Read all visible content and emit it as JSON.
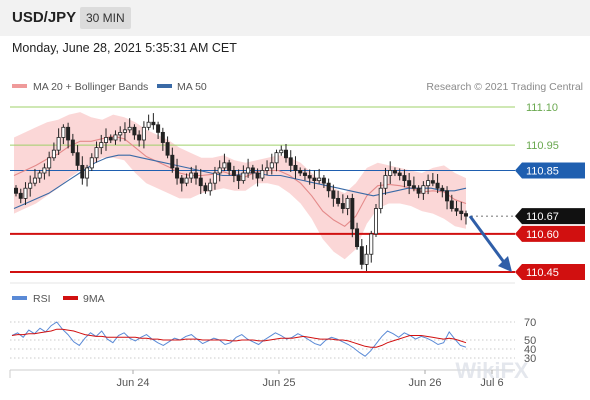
{
  "header": {
    "pair": "USD/JPY",
    "timeframe": "30 MIN",
    "datetime": "Monday, June 28, 2021 5:35:31 AM CET"
  },
  "legend": {
    "bollinger": "MA 20 + Bollinger Bands",
    "ma50": "MA 50",
    "credit": "Research © 2021 Trading Central"
  },
  "rsi_legend": {
    "rsi": "RSI",
    "ma9": "9MA"
  },
  "watermark": "WikiFX",
  "colors": {
    "bollinger_band": "#f9c9c9",
    "ma20": "#e48a8a",
    "ma50": "#3a6aa6",
    "support": "#d11010",
    "resistance_green": "#9fd06a",
    "current_blue": "#1f5fb0",
    "arrow": "#2f5ea8",
    "candle": "#222222",
    "rsi": "#5a8ad6",
    "rsi_ma": "#d11010"
  },
  "chart_data": [
    {
      "type": "candlestick",
      "title": "USD/JPY 30 MIN",
      "x_ticks": [
        "Jun 24",
        "Jun 25",
        "Jun 26",
        "Jul 6"
      ],
      "ylim": [
        110.44,
        111.14
      ],
      "levels": [
        {
          "value": 111.1,
          "label": "111.10",
          "kind": "resistance"
        },
        {
          "value": 110.95,
          "label": "110.95",
          "kind": "resistance"
        },
        {
          "value": 110.85,
          "label": "110.85",
          "kind": "pivot"
        },
        {
          "value": 110.67,
          "label": "110.67",
          "kind": "current"
        },
        {
          "value": 110.6,
          "label": "110.60",
          "kind": "support"
        },
        {
          "value": 110.45,
          "label": "110.45",
          "kind": "support"
        }
      ],
      "close_series": [
        110.76,
        110.74,
        110.78,
        110.8,
        110.82,
        110.84,
        110.86,
        110.9,
        110.93,
        110.98,
        111.02,
        110.97,
        110.92,
        110.87,
        110.82,
        110.86,
        110.9,
        110.94,
        110.96,
        110.98,
        110.97,
        110.99,
        111.0,
        111.01,
        111.02,
        110.99,
        110.97,
        111.02,
        111.04,
        111.03,
        111.0,
        110.96,
        110.91,
        110.86,
        110.82,
        110.8,
        110.82,
        110.84,
        110.82,
        110.79,
        110.77,
        110.8,
        110.84,
        110.86,
        110.88,
        110.85,
        110.83,
        110.81,
        110.84,
        110.86,
        110.84,
        110.82,
        110.85,
        110.86,
        110.88,
        110.92,
        110.93,
        110.9,
        110.87,
        110.85,
        110.84,
        110.83,
        110.82,
        110.81,
        110.82,
        110.8,
        110.77,
        110.74,
        110.72,
        110.7,
        110.74,
        110.62,
        110.55,
        110.48,
        110.52,
        110.6,
        110.7,
        110.78,
        110.83,
        110.85,
        110.84,
        110.83,
        110.81,
        110.79,
        110.78,
        110.76,
        110.79,
        110.81,
        110.8,
        110.78,
        110.77,
        110.73,
        110.7,
        110.69,
        110.68,
        110.67
      ],
      "bollinger_upper": [
        110.98,
        111.0,
        111.02,
        111.04,
        111.05,
        111.07,
        111.08,
        111.06,
        111.05,
        111.07,
        111.06,
        111.04,
        111.01,
        110.99,
        110.97,
        110.94,
        110.92,
        110.9,
        110.9,
        110.91,
        110.89,
        110.88,
        110.89,
        110.9,
        110.91,
        110.9,
        110.88,
        110.84,
        110.8,
        110.78,
        110.76,
        110.8,
        110.86,
        110.88,
        110.87,
        110.86,
        110.85,
        110.84,
        110.86,
        110.87,
        110.84,
        110.82
      ],
      "bollinger_lower": [
        110.68,
        110.7,
        110.72,
        110.75,
        110.78,
        110.82,
        110.85,
        110.87,
        110.9,
        110.9,
        110.89,
        110.84,
        110.8,
        110.78,
        110.76,
        110.74,
        110.74,
        110.76,
        110.77,
        110.78,
        110.77,
        110.77,
        110.8,
        110.8,
        110.79,
        110.76,
        110.72,
        110.66,
        110.58,
        110.53,
        110.5,
        110.54,
        110.64,
        110.7,
        110.72,
        110.72,
        110.71,
        110.69,
        110.68,
        110.66,
        110.63,
        110.62
      ],
      "ma50": [
        110.7,
        110.72,
        110.74,
        110.76,
        110.79,
        110.82,
        110.85,
        110.88,
        110.9,
        110.91,
        110.91,
        110.9,
        110.89,
        110.88,
        110.87,
        110.86,
        110.85,
        110.84,
        110.83,
        110.83,
        110.84,
        110.84,
        110.83,
        110.83,
        110.82,
        110.81,
        110.8,
        110.79,
        110.78,
        110.77,
        110.76,
        110.75,
        110.76,
        110.77,
        110.78,
        110.78,
        110.78,
        110.77,
        110.77,
        110.78
      ],
      "forecast_target": 110.45
    },
    {
      "type": "line",
      "title": "RSI",
      "ylim": [
        20,
        80
      ],
      "y_ticks": [
        70,
        50,
        40,
        30
      ],
      "series": [
        {
          "name": "RSI",
          "values": [
            55,
            58,
            53,
            61,
            57,
            63,
            59,
            66,
            70,
            62,
            56,
            48,
            44,
            52,
            58,
            54,
            60,
            51,
            47,
            55,
            58,
            52,
            49,
            53,
            56,
            51,
            47,
            44,
            48,
            52,
            50,
            54,
            56,
            51,
            46,
            49,
            52,
            50,
            45,
            47,
            53,
            56,
            51,
            48,
            45,
            50,
            54,
            58,
            55,
            51,
            53,
            57,
            54,
            50,
            46,
            44,
            50,
            53,
            51,
            48,
            45,
            41,
            36,
            32,
            38,
            46,
            54,
            60,
            57,
            53,
            58,
            55,
            51,
            54,
            52,
            49,
            45,
            47,
            59,
            51,
            44,
            42
          ]
        },
        {
          "name": "9MA",
          "values": [
            55,
            56,
            56,
            57,
            57,
            58,
            59,
            60,
            62,
            62,
            61,
            60,
            58,
            56,
            55,
            54,
            54,
            53,
            53,
            53,
            53,
            53,
            53,
            52,
            52,
            51,
            51,
            50,
            50,
            50,
            50,
            51,
            51,
            51,
            50,
            50,
            50,
            50,
            50,
            49,
            49,
            50,
            50,
            50,
            49,
            49,
            50,
            51,
            52,
            52,
            52,
            53,
            54,
            53,
            52,
            51,
            51,
            51,
            50,
            50,
            49,
            47,
            45,
            43,
            42,
            42,
            44,
            47,
            49,
            51,
            53,
            55,
            55,
            55,
            54,
            53,
            52,
            51,
            52,
            51,
            49,
            47
          ]
        }
      ]
    }
  ]
}
